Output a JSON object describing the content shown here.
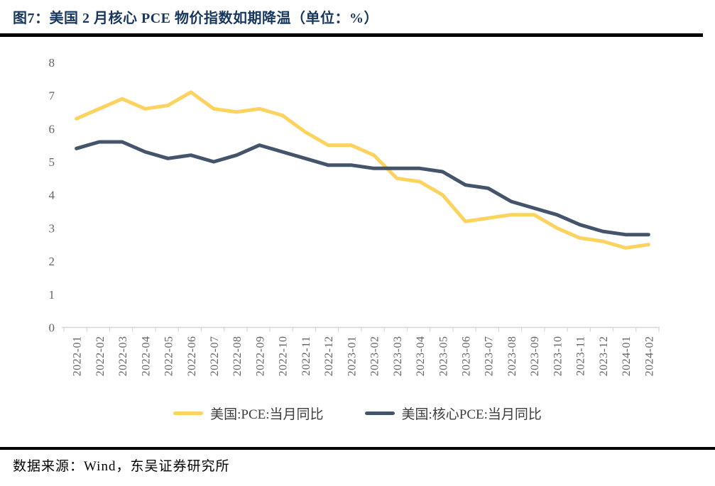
{
  "page": {
    "title": "图7：美国 2 月核心 PCE 物价指数如期降温（单位：%）",
    "source_note": "数据来源：Wind，东吴证券研究所"
  },
  "chart_data": {
    "type": "line",
    "title": "美国 2 月核心 PCE 物价指数如期降温",
    "unit": "%",
    "categories": [
      "2022-01",
      "2022-02",
      "2022-03",
      "2022-04",
      "2022-05",
      "2022-06",
      "2022-07",
      "2022-08",
      "2022-09",
      "2022-10",
      "2022-11",
      "2022-12",
      "2023-01",
      "2023-02",
      "2023-03",
      "2023-04",
      "2023-05",
      "2023-06",
      "2023-07",
      "2023-08",
      "2023-09",
      "2023-10",
      "2023-11",
      "2023-12",
      "2024-01",
      "2024-02"
    ],
    "series": [
      {
        "name": "美国:PCE:当月同比",
        "color": "#FBD35E",
        "values": [
          6.3,
          6.6,
          6.9,
          6.6,
          6.7,
          7.1,
          6.6,
          6.5,
          6.6,
          6.4,
          5.9,
          5.5,
          5.5,
          5.2,
          4.5,
          4.4,
          4.0,
          3.2,
          3.3,
          3.4,
          3.4,
          3.0,
          2.7,
          2.6,
          2.4,
          2.5
        ]
      },
      {
        "name": "美国:核心PCE:当月同比",
        "color": "#44546A",
        "values": [
          5.4,
          5.6,
          5.6,
          5.3,
          5.1,
          5.2,
          5.0,
          5.2,
          5.5,
          5.3,
          5.1,
          4.9,
          4.9,
          4.8,
          4.8,
          4.8,
          4.7,
          4.3,
          4.2,
          3.8,
          3.6,
          3.4,
          3.1,
          2.9,
          2.8,
          2.8
        ]
      }
    ],
    "ylim": [
      0,
      8
    ],
    "yticks": [
      0,
      1,
      2,
      3,
      4,
      5,
      6,
      7,
      8
    ],
    "grid": "off",
    "legend_position": "bottom"
  },
  "colors": {
    "title": "#17375E",
    "axis_line": "#D6D6D6",
    "tick_label": "#646464",
    "pce_line": "#FBD35E",
    "core_pce_line": "#44546A",
    "divider": "#000000"
  }
}
